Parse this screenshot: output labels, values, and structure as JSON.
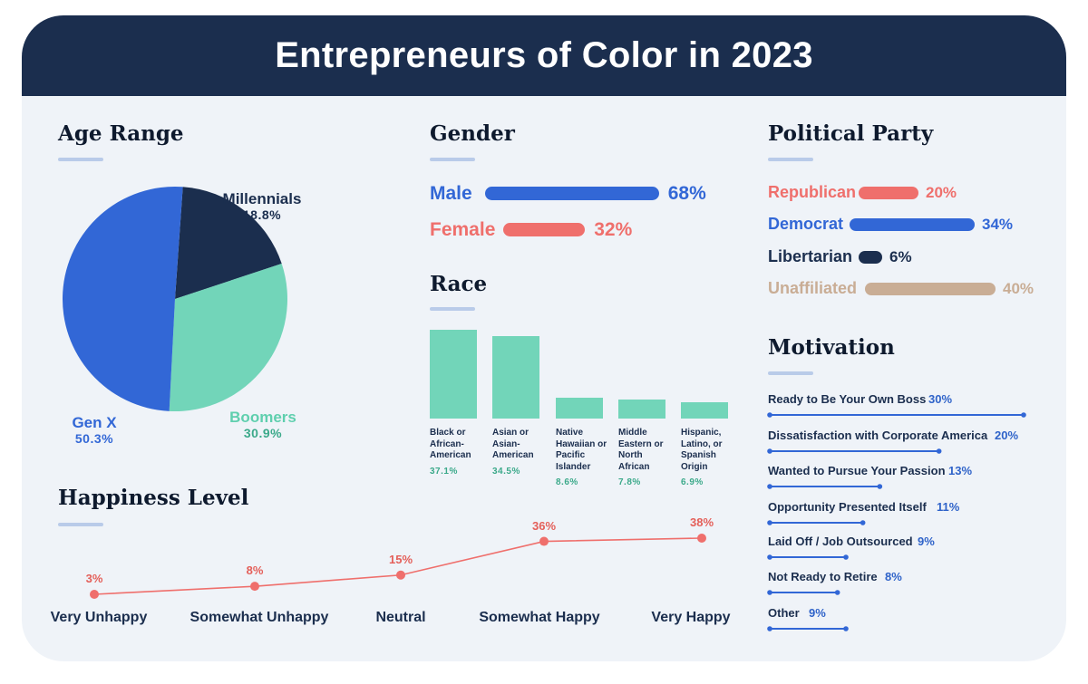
{
  "title": "Entrepreneurs of Color in 2023",
  "colors": {
    "navy": "#1b2e4e",
    "blue": "#3267d6",
    "red": "#ef6f6c",
    "teal": "#72d5b9",
    "tan": "#c9ad95"
  },
  "chart_data": [
    {
      "id": "age",
      "type": "pie",
      "title": "Age Range",
      "slices": [
        {
          "label": "Millennials",
          "value": 18.8,
          "value_label": "18.8%",
          "color": "#1b2e4e"
        },
        {
          "label": "Boomers",
          "value": 30.9,
          "value_label": "30.9%",
          "color": "#72d5b9"
        },
        {
          "label": "Gen X",
          "value": 50.3,
          "value_label": "50.3%",
          "color": "#3267d6"
        }
      ]
    },
    {
      "id": "gender",
      "type": "bar",
      "orientation": "horizontal",
      "title": "Gender",
      "categories": [
        "Male",
        "Female"
      ],
      "values": [
        68,
        32
      ],
      "value_labels": [
        "68%",
        "32%"
      ],
      "colors": [
        "#3267d6",
        "#ef6f6c"
      ]
    },
    {
      "id": "race",
      "type": "bar",
      "title": "Race",
      "categories": [
        "Black or African-American",
        "Asian or Asian-American",
        "Native Hawaiian or Pacific Islander",
        "Middle Eastern or North African",
        "Hispanic, Latino, or Spanish Origin"
      ],
      "values": [
        37.1,
        34.5,
        8.6,
        7.8,
        6.9
      ],
      "value_labels": [
        "37.1%",
        "34.5%",
        "8.6%",
        "7.8%",
        "6.9%"
      ],
      "color": "#72d5b9"
    },
    {
      "id": "party",
      "type": "bar",
      "orientation": "horizontal",
      "title": "Political Party",
      "categories": [
        "Republican",
        "Democrat",
        "Libertarian",
        "Unaffiliated"
      ],
      "values": [
        20,
        34,
        6,
        40
      ],
      "value_labels": [
        "20%",
        "34%",
        "6%",
        "40%"
      ],
      "colors": [
        "#ef6f6c",
        "#3267d6",
        "#1b2e4e",
        "#c9ad95"
      ]
    },
    {
      "id": "motivation",
      "type": "bar",
      "orientation": "horizontal",
      "title": "Motivation",
      "categories": [
        "Ready to Be Your Own Boss",
        "Dissatisfaction with Corporate America",
        "Wanted to Pursue Your Passion",
        "Opportunity Presented Itself",
        "Laid Off / Job Outsourced",
        "Not Ready to Retire",
        "Other"
      ],
      "values": [
        30,
        20,
        13,
        11,
        9,
        8,
        9
      ],
      "value_labels": [
        "30%",
        "20%",
        "13%",
        "11%",
        "9%",
        "8%",
        "9%"
      ],
      "color": "#3267d6"
    },
    {
      "id": "happiness",
      "type": "line",
      "title": "Happiness Level",
      "categories": [
        "Very Unhappy",
        "Somewhat Unhappy",
        "Neutral",
        "Somewhat Happy",
        "Very Happy"
      ],
      "values": [
        3,
        8,
        15,
        36,
        38
      ],
      "value_labels": [
        "3%",
        "8%",
        "15%",
        "36%",
        "38%"
      ],
      "color": "#ef6f6c"
    }
  ]
}
